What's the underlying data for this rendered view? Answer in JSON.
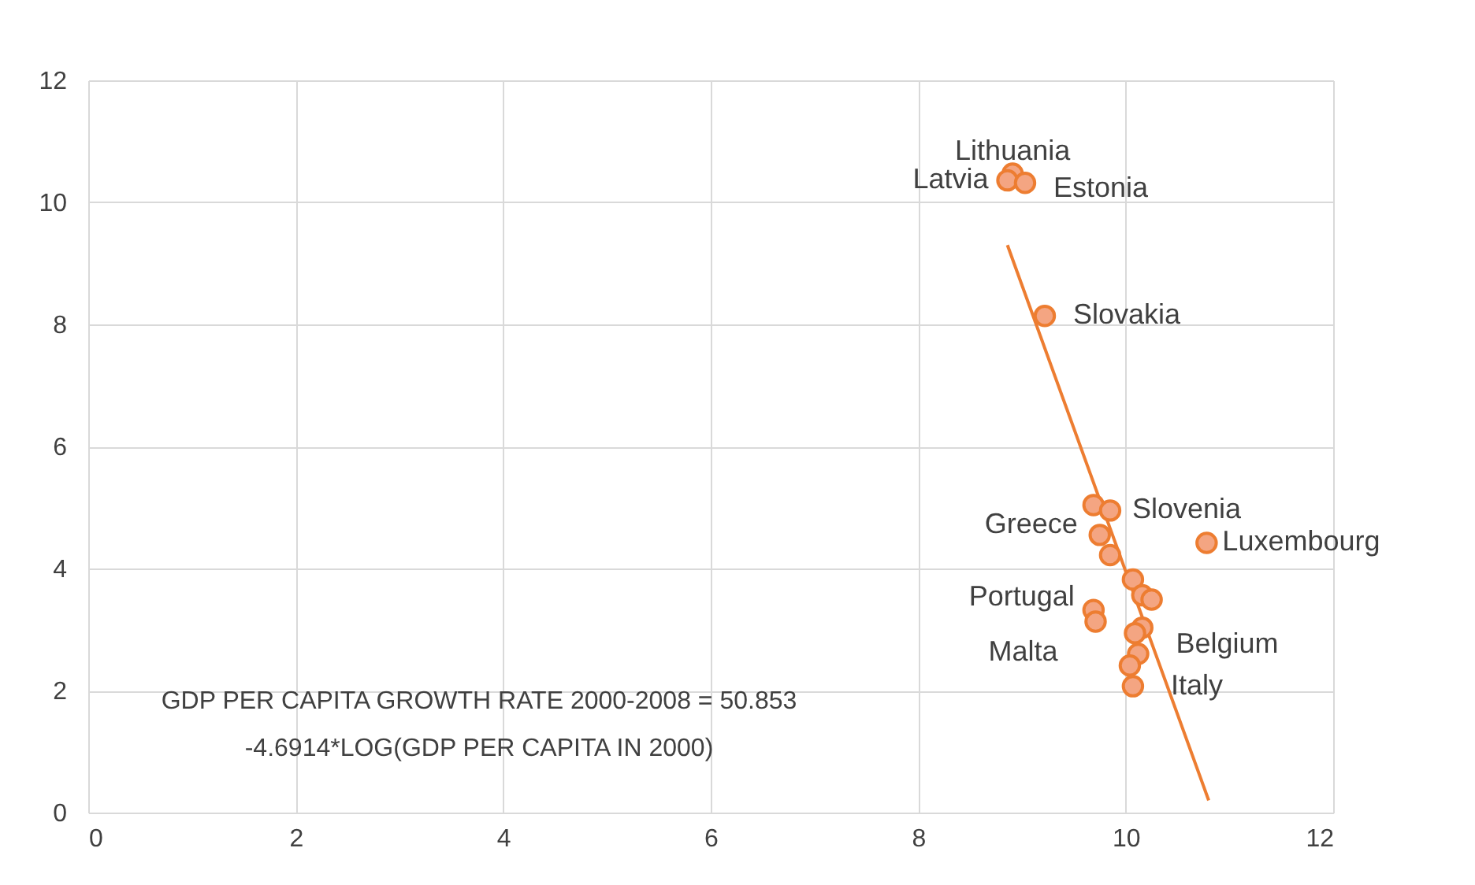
{
  "chart_data": {
    "type": "scatter",
    "xlim": [
      0,
      12
    ],
    "xticks": [
      0,
      2,
      4,
      6,
      8,
      10,
      12
    ],
    "ylim": [
      0,
      12
    ],
    "yticks": [
      0,
      2,
      4,
      6,
      8,
      10,
      12
    ],
    "grid": true,
    "marker": "circle",
    "series": [
      {
        "type": "scatter",
        "color": "#ed7d31",
        "x": [
          8.91,
          8.86,
          9.03,
          9.22,
          9.69,
          9.85,
          9.75,
          9.85,
          10.78,
          10.07,
          10.16,
          10.25,
          9.69,
          9.71,
          10.16,
          10.09,
          10.12,
          10.04,
          10.07
        ],
        "values": [
          10.47,
          10.36,
          10.32,
          8.14,
          5.04,
          4.95,
          4.55,
          4.22,
          4.42,
          3.82,
          3.56,
          3.49,
          3.32,
          3.13,
          3.03,
          2.94,
          2.6,
          2.41,
          2.07
        ]
      },
      {
        "type": "line",
        "color": "#ed7d31",
        "marker": "none",
        "x": [
          8.86,
          10.8
        ],
        "values": [
          9.3,
          0.2
        ]
      }
    ],
    "annotations": [
      {
        "text": "Lithuania",
        "x": 8.91,
        "y": 10.47
      },
      {
        "text": "Latvia",
        "x": 8.86,
        "y": 10.36
      },
      {
        "text": "Estonia",
        "x": 9.03,
        "y": 10.32
      },
      {
        "text": "Slovakia",
        "x": 9.22,
        "y": 8.14
      },
      {
        "text": "Slovenia",
        "x": 9.85,
        "y": 4.95
      },
      {
        "text": "Greece",
        "x": 9.75,
        "y": 4.55
      },
      {
        "text": "Luxembourg",
        "x": 10.78,
        "y": 4.42
      },
      {
        "text": "Portugal",
        "x": 9.69,
        "y": 3.32
      },
      {
        "text": "Malta",
        "x": 9.71,
        "y": 3.13
      },
      {
        "text": "Belgium",
        "x": 10.12,
        "y": 2.6
      },
      {
        "text": "Italy",
        "x": 10.07,
        "y": 2.07
      },
      "GDP PER CAPITA GROWTH RATE 2000-2008 = 50.853 -4.6914*LOG(GDP PER CAPITA IN 2000)"
    ]
  }
}
